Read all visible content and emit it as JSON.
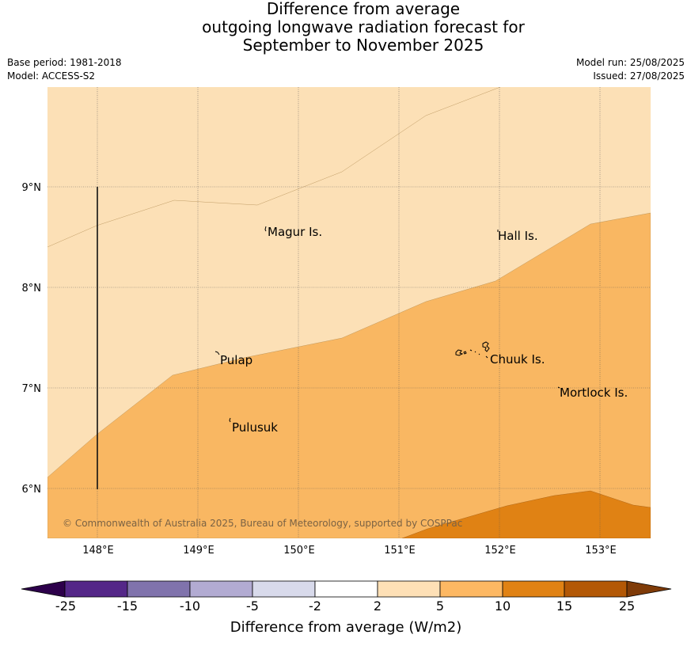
{
  "title": {
    "line1": "Difference from average",
    "line2": "outgoing longwave radiation forecast for",
    "line3": "September to November 2025"
  },
  "meta": {
    "base_period": "Base period: 1981-2018",
    "model": "Model: ACCESS-S2",
    "model_run": "Model run: 25/08/2025",
    "issued": "Issued: 27/08/2025"
  },
  "map": {
    "lat_labels": [
      "9°N",
      "8°N",
      "7°N",
      "6°N"
    ],
    "lon_labels": [
      "148°E",
      "149°E",
      "150°E",
      "151°E",
      "152°E",
      "153°E"
    ],
    "places": [
      {
        "id": "magur",
        "name": "Magur Is."
      },
      {
        "id": "hall",
        "name": "Hall Is."
      },
      {
        "id": "pulap",
        "name": "Pulap"
      },
      {
        "id": "chuuk",
        "name": "Chuuk Is."
      },
      {
        "id": "mortlock",
        "name": "Mortlock Is."
      },
      {
        "id": "pulusuk",
        "name": "Pulusuk"
      }
    ],
    "copyright": "© Commonwealth of Australia 2025, Bureau of Meteorology, supported by COSPPac",
    "colors": {
      "band_2_5": "#fce0b6",
      "band_5_10": "#f9b762",
      "band_10_15": "#e08214"
    }
  },
  "colorbar": {
    "ticks": [
      "-25",
      "-15",
      "-10",
      "-5",
      "-2",
      "2",
      "5",
      "10",
      "15",
      "25"
    ],
    "colors": [
      "#2d004b",
      "#542788",
      "#8073ac",
      "#b2abd2",
      "#d8daeb",
      "#ffffff",
      "#fee0b6",
      "#fdb863",
      "#e08214",
      "#b35806",
      "#7f3b08"
    ],
    "label": "Difference from average (W/m2)"
  }
}
